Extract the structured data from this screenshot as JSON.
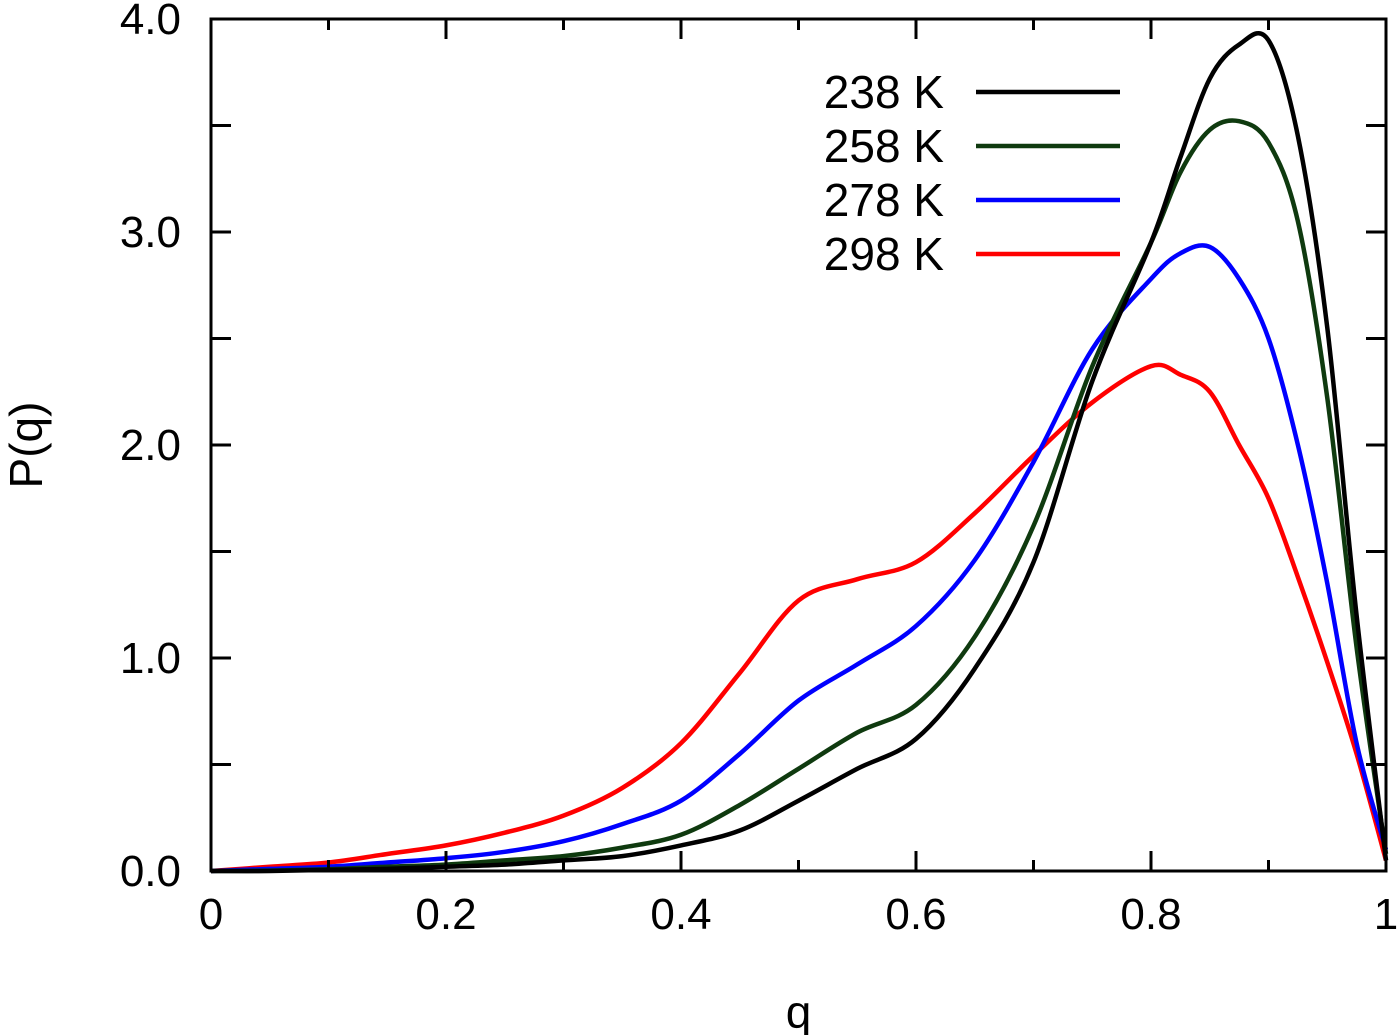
{
  "chart_data": {
    "type": "line",
    "title": "",
    "xlabel": "q",
    "ylabel": "P(q)",
    "xlim": [
      0,
      1
    ],
    "ylim": [
      0,
      4
    ],
    "grid": false,
    "legend_position": "top-right",
    "x_ticks": [
      {
        "value": 0,
        "label": "0"
      },
      {
        "value": 0.2,
        "label": "0.2"
      },
      {
        "value": 0.4,
        "label": "0.4"
      },
      {
        "value": 0.6,
        "label": "0.6"
      },
      {
        "value": 0.8,
        "label": "0.8"
      },
      {
        "value": 1,
        "label": "1"
      }
    ],
    "y_ticks": [
      {
        "value": 0,
        "label": "0.0"
      },
      {
        "value": 1,
        "label": "1.0"
      },
      {
        "value": 2,
        "label": "2.0"
      },
      {
        "value": 3,
        "label": "3.0"
      },
      {
        "value": 4,
        "label": "4.0"
      }
    ],
    "y_minor_ticks": [
      0.5,
      1.5,
      2.5,
      3.5
    ],
    "x_minor_ticks": [
      0.1,
      0.3,
      0.5,
      0.7,
      0.9
    ],
    "x": [
      0.0,
      0.05,
      0.1,
      0.15,
      0.2,
      0.25,
      0.3,
      0.35,
      0.4,
      0.45,
      0.5,
      0.55,
      0.6,
      0.65,
      0.7,
      0.75,
      0.8,
      0.825,
      0.85,
      0.875,
      0.9,
      0.925,
      0.95,
      0.975,
      1.0
    ],
    "series": [
      {
        "name": "238 K",
        "color": "#000000",
        "values": [
          0.0,
          0.0,
          0.005,
          0.01,
          0.02,
          0.03,
          0.05,
          0.07,
          0.12,
          0.19,
          0.33,
          0.48,
          0.62,
          0.95,
          1.45,
          2.3,
          2.95,
          3.35,
          3.72,
          3.88,
          3.9,
          3.45,
          2.55,
          1.2,
          0.05
        ]
      },
      {
        "name": "258 K",
        "color": "#0f3a0f",
        "values": [
          0.0,
          0.002,
          0.008,
          0.02,
          0.03,
          0.05,
          0.07,
          0.11,
          0.17,
          0.31,
          0.48,
          0.65,
          0.78,
          1.1,
          1.62,
          2.37,
          2.95,
          3.28,
          3.48,
          3.52,
          3.42,
          3.05,
          2.22,
          1.05,
          0.08
        ]
      },
      {
        "name": "278 K",
        "color": "#0000ff",
        "values": [
          0.0,
          0.01,
          0.02,
          0.04,
          0.06,
          0.09,
          0.14,
          0.22,
          0.33,
          0.55,
          0.8,
          0.97,
          1.15,
          1.46,
          1.92,
          2.45,
          2.78,
          2.9,
          2.93,
          2.78,
          2.5,
          2.0,
          1.35,
          0.6,
          0.1
        ]
      },
      {
        "name": "298 K",
        "color": "#ff0000",
        "values": [
          0.0,
          0.02,
          0.04,
          0.08,
          0.12,
          0.18,
          0.26,
          0.39,
          0.6,
          0.93,
          1.27,
          1.37,
          1.45,
          1.68,
          1.95,
          2.2,
          2.37,
          2.33,
          2.25,
          2.0,
          1.75,
          1.38,
          0.98,
          0.55,
          0.05
        ]
      }
    ]
  }
}
